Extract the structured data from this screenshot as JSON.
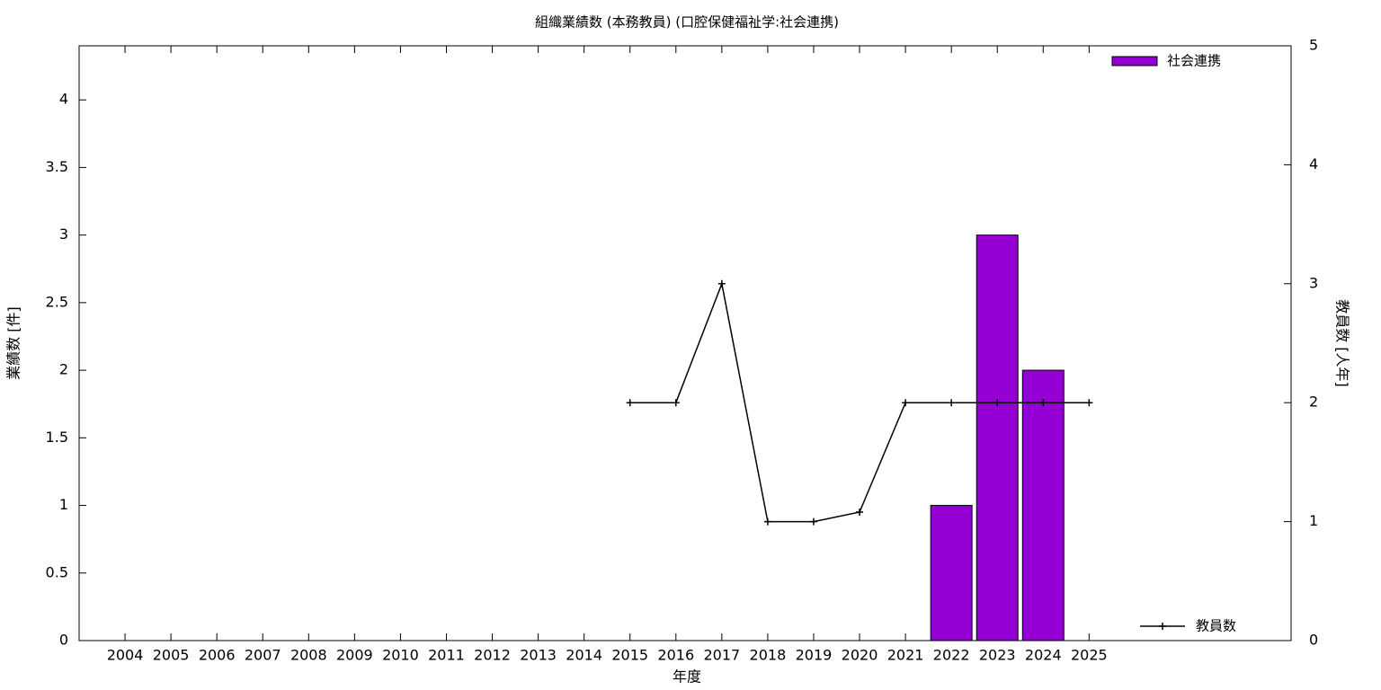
{
  "chart_data": {
    "type": "bar",
    "title": "組織業績数 (本務教員) (口腔保健福祉学:社会連携)",
    "x_label": "年度",
    "y_label": "業績数 [件]",
    "y2_label": "教員数 [人年]",
    "x": [
      2004,
      2005,
      2006,
      2007,
      2008,
      2009,
      2010,
      2011,
      2012,
      2013,
      2014,
      2015,
      2016,
      2017,
      2018,
      2019,
      2020,
      2021,
      2022,
      2023,
      2024,
      2025
    ],
    "xlim": [
      2003,
      2029.4
    ],
    "xticks": [
      2004,
      2005,
      2006,
      2007,
      2008,
      2009,
      2010,
      2011,
      2012,
      2013,
      2014,
      2015,
      2016,
      2017,
      2018,
      2019,
      2020,
      2021,
      2022,
      2023,
      2024,
      2025
    ],
    "ylim": [
      0,
      4.4
    ],
    "yticks": [
      0,
      0.5,
      1,
      1.5,
      2,
      2.5,
      3,
      3.5,
      4
    ],
    "y2lim": [
      0,
      5
    ],
    "y2ticks": [
      0,
      1,
      2,
      3,
      4,
      5
    ],
    "series": [
      {
        "name": "社会連携",
        "type": "bar",
        "color": "#9400d3",
        "legend": "upper right",
        "values": [
          null,
          null,
          null,
          null,
          null,
          null,
          null,
          null,
          null,
          null,
          null,
          null,
          null,
          null,
          null,
          null,
          null,
          null,
          1,
          3,
          2,
          null
        ]
      },
      {
        "name": "教員数",
        "type": "line",
        "color": "#000000",
        "axis": "y2",
        "legend": "lower right",
        "values": [
          null,
          null,
          null,
          null,
          null,
          null,
          null,
          null,
          null,
          null,
          null,
          2,
          2,
          3,
          1,
          1,
          1.08,
          2,
          2,
          2,
          2,
          2
        ]
      }
    ]
  }
}
